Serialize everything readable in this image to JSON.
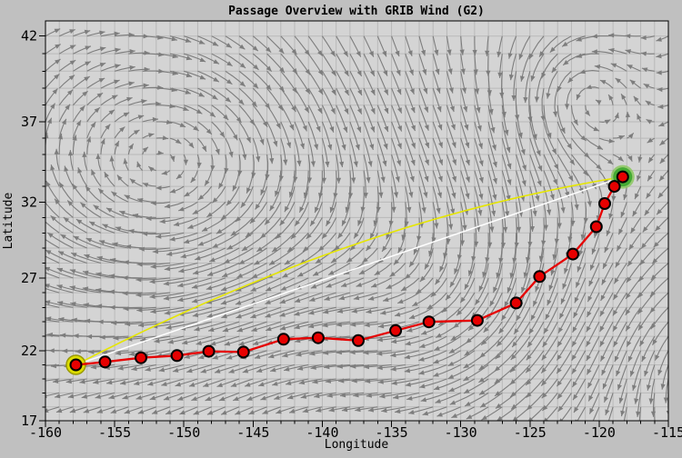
{
  "title": "Passage Overview with GRIB Wind (G2)",
  "colors": {
    "outer_bg": "#c0c0c0",
    "plot_bg": "#d4d4d4",
    "grid": "#b9b9b9",
    "axis": "#000000",
    "wind_arrow": "#7d7d7d",
    "route": "#e60000",
    "route_marker_fill": "#e60000",
    "route_marker_edge": "#000000",
    "great_circle": "#e6e600",
    "rhumb_line": "#ffffff",
    "start_ring": "#dddd00",
    "start_ring_edge": "#999900",
    "end_ring": "#44aa33",
    "end_ring_glow": "#8cc860"
  },
  "chart_data": {
    "type": "line",
    "title": "Passage Overview with GRIB Wind (G2)",
    "xlabel": "Longitude",
    "ylabel": "Latitude",
    "projection": "mercator",
    "xlim": [
      -160,
      -115
    ],
    "ylim": [
      17,
      42.85
    ],
    "grid": {
      "on": true,
      "step_deg": 1
    },
    "x_ticks_labeled": [
      -160,
      -155,
      -150,
      -145,
      -140,
      -135,
      -130,
      -125,
      -120,
      -115
    ],
    "y_ticks_labeled": [
      42,
      37,
      32,
      27,
      22,
      17
    ],
    "tick_minor_step_deg": 1,
    "series": [
      {
        "name": "sailed-route",
        "style": "line+markers",
        "points": [
          [
            -157.8,
            21.0
          ],
          [
            -155.7,
            21.2
          ],
          [
            -153.1,
            21.5
          ],
          [
            -150.5,
            21.65
          ],
          [
            -148.2,
            21.95
          ],
          [
            -145.7,
            21.9
          ],
          [
            -142.8,
            22.8
          ],
          [
            -140.3,
            22.9
          ],
          [
            -137.4,
            22.7
          ],
          [
            -134.7,
            23.4
          ],
          [
            -132.3,
            24.0
          ],
          [
            -128.8,
            24.1
          ],
          [
            -126.0,
            25.3
          ],
          [
            -124.3,
            27.1
          ],
          [
            -121.9,
            28.6
          ],
          [
            -120.2,
            30.4
          ],
          [
            -119.6,
            31.9
          ],
          [
            -118.9,
            33.0
          ],
          [
            -118.3,
            33.6
          ]
        ]
      },
      {
        "name": "great-circle-route",
        "style": "line",
        "from": [
          -157.8,
          21.0
        ],
        "to": [
          -118.3,
          33.6
        ]
      },
      {
        "name": "rhumb-line",
        "style": "line",
        "from": [
          -157.8,
          21.0
        ],
        "to": [
          -118.3,
          33.6
        ]
      }
    ],
    "start_marker": {
      "lon": -157.8,
      "lat": 21.0,
      "ring": "yellow"
    },
    "end_marker": {
      "lon": -118.3,
      "lat": 33.6,
      "ring": "green"
    },
    "wind_field": {
      "source": "GRIB (G2)",
      "grid_step_deg": 1,
      "model": {
        "background": {
          "u": -0.5,
          "v": -0.45
        },
        "centers": [
          {
            "lon": -150,
            "lat": 33.5,
            "type": "high",
            "strength": 3.2,
            "sigma_x": 12,
            "sigma_y": 7
          },
          {
            "lon": -131,
            "lat": 26.5,
            "type": "high",
            "strength": 1.8,
            "sigma_x": 6,
            "sigma_y": 6
          },
          {
            "lon": -121.5,
            "lat": 38.5,
            "type": "low",
            "strength": 2.2,
            "sigma_x": 3,
            "sigma_y": 3
          },
          {
            "lon": -111,
            "lat": 21,
            "type": "low",
            "strength": 1.8,
            "sigma_x": 5,
            "sigma_y": 5
          }
        ]
      }
    }
  }
}
